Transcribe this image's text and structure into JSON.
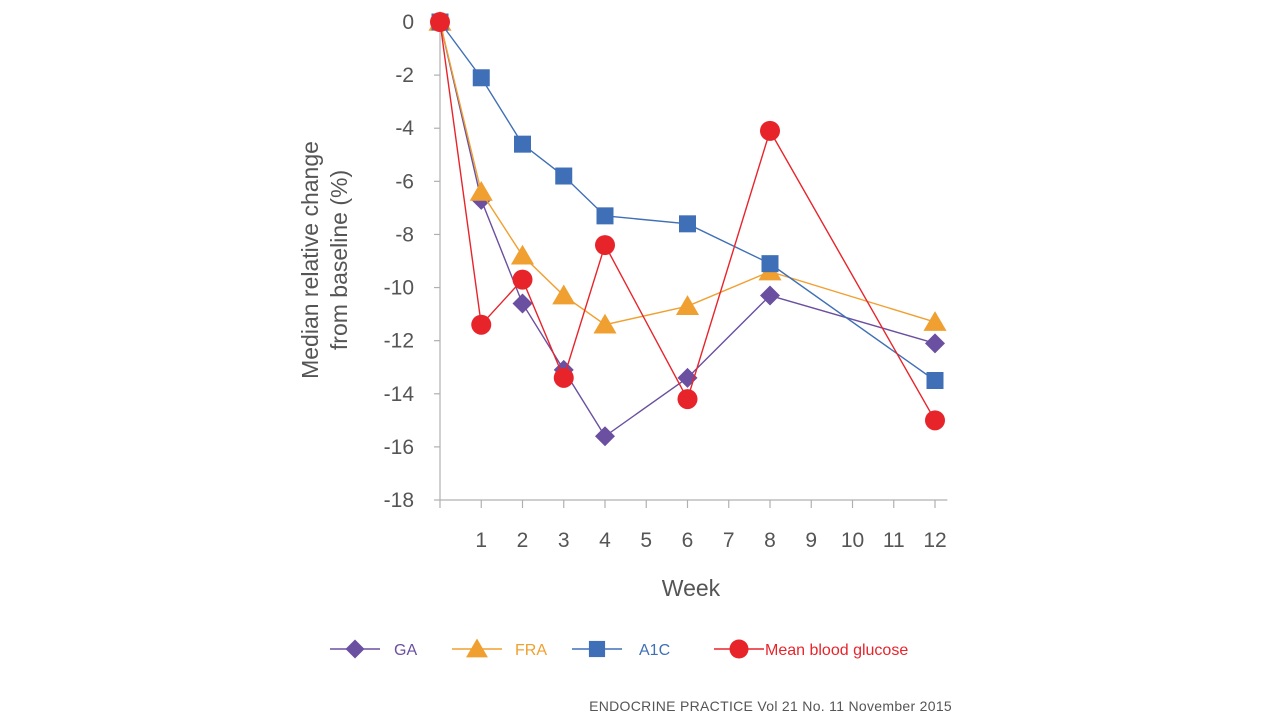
{
  "chart_data": {
    "type": "line",
    "title": "",
    "xlabel": "Week",
    "ylabel_line1": "Median relative change",
    "ylabel_line2": "from baseline (%)",
    "x_ticks": [
      1,
      2,
      3,
      4,
      5,
      6,
      7,
      8,
      9,
      10,
      11,
      12
    ],
    "xlim": [
      0,
      12.3
    ],
    "y_ticks": [
      0,
      -2,
      -4,
      -6,
      -8,
      -10,
      -12,
      -14,
      -16,
      -18
    ],
    "ylim": [
      -18,
      0
    ],
    "grid": false,
    "legend_position": "bottom",
    "series": [
      {
        "name": "GA",
        "marker": "diamond",
        "color": "#6b4fa0",
        "label_color": "#6b4fa0",
        "x": [
          0,
          1,
          2,
          3,
          4,
          6,
          8,
          12
        ],
        "values": [
          0,
          -6.7,
          -10.6,
          -13.1,
          -15.6,
          -13.4,
          -10.3,
          -12.1
        ]
      },
      {
        "name": "FRA",
        "marker": "triangle",
        "color": "#f0a030",
        "label_color": "#f0a030",
        "x": [
          0,
          1,
          2,
          3,
          4,
          6,
          8,
          12
        ],
        "values": [
          0,
          -6.4,
          -8.8,
          -10.3,
          -11.4,
          -10.7,
          -9.4,
          -11.3
        ]
      },
      {
        "name": "A1C",
        "marker": "square",
        "color": "#3f6fb7",
        "label_color": "#3f6fb7",
        "x": [
          0,
          1,
          2,
          3,
          4,
          6,
          8,
          12
        ],
        "values": [
          0,
          -2.1,
          -4.6,
          -5.8,
          -7.3,
          -7.6,
          -9.1,
          -13.5
        ]
      },
      {
        "name": "Mean blood glucose",
        "marker": "circle",
        "color": "#e8242b",
        "label_color": "#e8242b",
        "x": [
          0,
          1,
          2,
          3,
          4,
          6,
          8,
          12
        ],
        "values": [
          0,
          -11.4,
          -9.7,
          -13.4,
          -8.4,
          -14.2,
          -4.1,
          -15.0
        ]
      }
    ],
    "source": "ENDOCRINE PRACTICE Vol 21 No. 11 November 2015"
  }
}
